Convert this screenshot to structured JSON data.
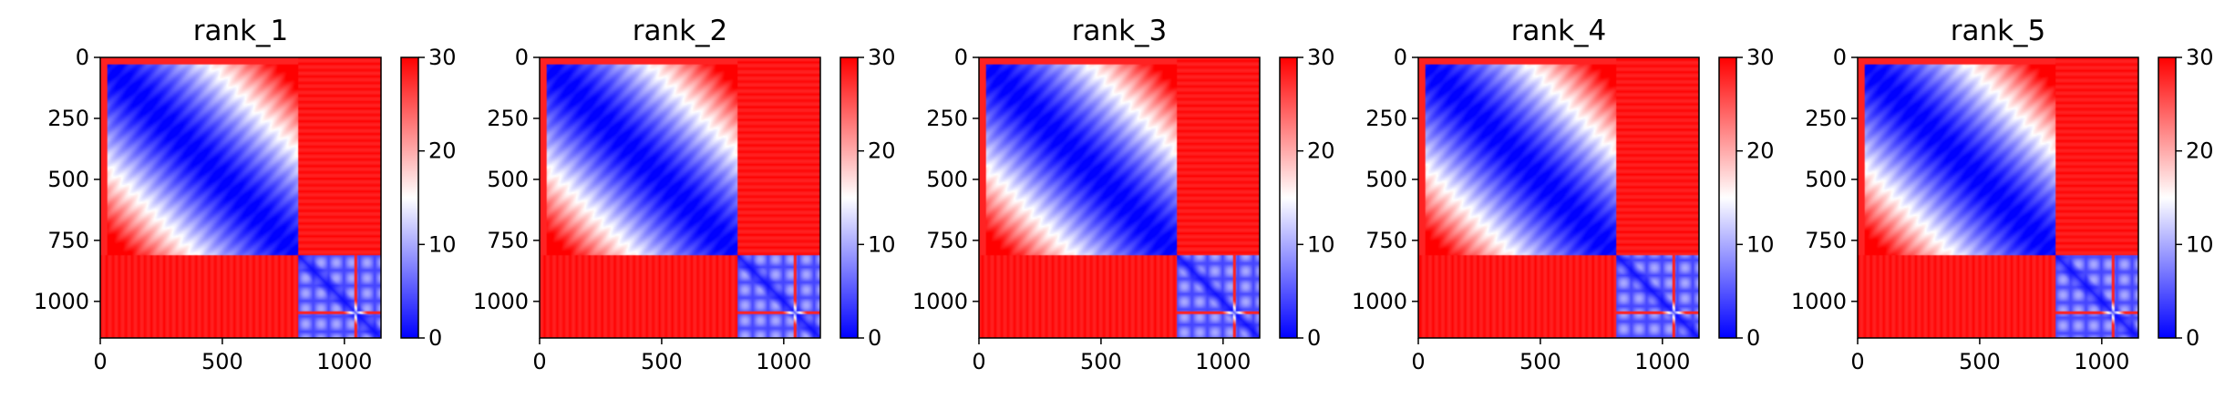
{
  "chart_data": [
    {
      "type": "heatmap",
      "title": "rank_1",
      "xticks": [
        0,
        500,
        1000
      ],
      "yticks": [
        0,
        250,
        500,
        750,
        1000
      ],
      "xlim": [
        0,
        1150
      ],
      "ylim": [
        1150,
        0
      ],
      "colorbar": {
        "min": 0,
        "max": 30,
        "ticks": [
          0,
          10,
          20,
          30
        ],
        "colormap": "bwr"
      },
      "blocks": {
        "boundary": 810,
        "block1_range": [
          0,
          810
        ],
        "block2_range": [
          810,
          1150
        ],
        "cross_value": 30,
        "stripe_rows": [
          1045
        ]
      }
    },
    {
      "type": "heatmap",
      "title": "rank_2",
      "xticks": [
        0,
        500,
        1000
      ],
      "yticks": [
        0,
        250,
        500,
        750,
        1000
      ],
      "xlim": [
        0,
        1150
      ],
      "ylim": [
        1150,
        0
      ],
      "colorbar": {
        "min": 0,
        "max": 30,
        "ticks": [
          0,
          10,
          20,
          30
        ],
        "colormap": "bwr"
      },
      "blocks": {
        "boundary": 810,
        "block1_range": [
          0,
          810
        ],
        "block2_range": [
          810,
          1150
        ],
        "cross_value": 30,
        "stripe_rows": [
          1045
        ]
      }
    },
    {
      "type": "heatmap",
      "title": "rank_3",
      "xticks": [
        0,
        500,
        1000
      ],
      "yticks": [
        0,
        250,
        500,
        750,
        1000
      ],
      "xlim": [
        0,
        1150
      ],
      "ylim": [
        1150,
        0
      ],
      "colorbar": {
        "min": 0,
        "max": 30,
        "ticks": [
          0,
          10,
          20,
          30
        ],
        "colormap": "bwr"
      },
      "blocks": {
        "boundary": 810,
        "block1_range": [
          0,
          810
        ],
        "block2_range": [
          810,
          1150
        ],
        "cross_value": 30,
        "stripe_rows": [
          1045
        ]
      }
    },
    {
      "type": "heatmap",
      "title": "rank_4",
      "xticks": [
        0,
        500,
        1000
      ],
      "yticks": [
        0,
        250,
        500,
        750,
        1000
      ],
      "xlim": [
        0,
        1150
      ],
      "ylim": [
        1150,
        0
      ],
      "colorbar": {
        "min": 0,
        "max": 30,
        "ticks": [
          0,
          10,
          20,
          30
        ],
        "colormap": "bwr"
      },
      "blocks": {
        "boundary": 810,
        "block1_range": [
          0,
          810
        ],
        "block2_range": [
          810,
          1150
        ],
        "cross_value": 30,
        "stripe_rows": [
          1045
        ]
      }
    },
    {
      "type": "heatmap",
      "title": "rank_5",
      "xticks": [
        0,
        500,
        1000
      ],
      "yticks": [
        0,
        250,
        500,
        750,
        1000
      ],
      "xlim": [
        0,
        1150
      ],
      "ylim": [
        1150,
        0
      ],
      "colorbar": {
        "min": 0,
        "max": 30,
        "ticks": [
          0,
          10,
          20,
          30
        ],
        "colormap": "bwr"
      },
      "blocks": {
        "boundary": 810,
        "block1_range": [
          0,
          810
        ],
        "block2_range": [
          810,
          1150
        ],
        "cross_value": 30,
        "stripe_rows": [
          1045
        ]
      }
    }
  ]
}
